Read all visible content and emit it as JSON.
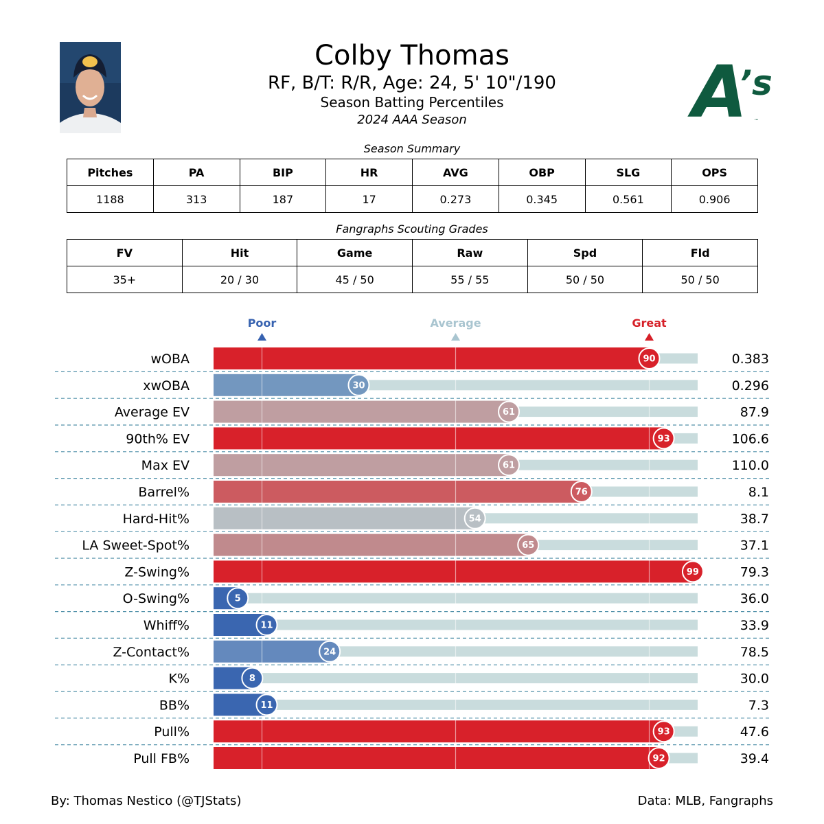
{
  "header": {
    "name": "Colby Thomas",
    "bio": "RF, B/T: R/R, Age: 24, 5' 10\"/190",
    "subtitle": "Season Batting Percentiles",
    "season": "2024 AAA Season",
    "logo_text": "A's",
    "logo_trademark": "™"
  },
  "summary": {
    "caption": "Season Summary",
    "headers": [
      "Pitches",
      "PA",
      "BIP",
      "HR",
      "AVG",
      "OBP",
      "SLG",
      "OPS"
    ],
    "values": [
      "1188",
      "313",
      "187",
      "17",
      "0.273",
      "0.345",
      "0.561",
      "0.906"
    ]
  },
  "grades": {
    "caption": "Fangraphs Scouting Grades",
    "headers": [
      "FV",
      "Hit",
      "Game",
      "Raw",
      "Spd",
      "Fld"
    ],
    "values": [
      "35+",
      "20 / 30",
      "45 / 50",
      "55 / 55",
      "50 / 50",
      "50 / 50"
    ]
  },
  "chart_data": {
    "type": "bar",
    "orientation": "horizontal",
    "scale_markers": [
      {
        "label": "Poor",
        "value": 10,
        "color": "#3762b0"
      },
      {
        "label": "Average",
        "value": 50,
        "color": "#a9c5d0"
      },
      {
        "label": "Great",
        "value": 90,
        "color": "#d62028"
      }
    ],
    "xlim": [
      0,
      100
    ],
    "categories": [
      "wOBA",
      "xwOBA",
      "Average EV",
      "90th% EV",
      "Max EV",
      "Barrel%",
      "Hard-Hit%",
      "LA Sweet-Spot%",
      "Z-Swing%",
      "O-Swing%",
      "Whiff%",
      "Z-Contact%",
      "K%",
      "BB%",
      "Pull%",
      "Pull FB%"
    ],
    "percentiles": [
      90,
      30,
      61,
      93,
      61,
      76,
      54,
      65,
      99,
      5,
      11,
      24,
      8,
      11,
      93,
      92
    ],
    "stat_values": [
      "0.383",
      "0.296",
      "87.9",
      "106.6",
      "110.0",
      "8.1",
      "38.7",
      "37.1",
      "79.3",
      "36.0",
      "33.9",
      "78.5",
      "30.0",
      "7.3",
      "47.6",
      "39.4"
    ],
    "colors": [
      "#d8212a",
      "#7397bf",
      "#bf9ea1",
      "#d8212a",
      "#bf9ea1",
      "#cc5b60",
      "#b8bfc4",
      "#c08a8d",
      "#d8212a",
      "#3a66b0",
      "#3a66b0",
      "#6489bd",
      "#3a66b0",
      "#3a66b0",
      "#d8212a",
      "#d8212a"
    ],
    "track_color": "#c9dcdd"
  },
  "footer": {
    "credit": "By: Thomas Nestico (@TJStats)",
    "source": "Data: MLB, Fangraphs"
  }
}
